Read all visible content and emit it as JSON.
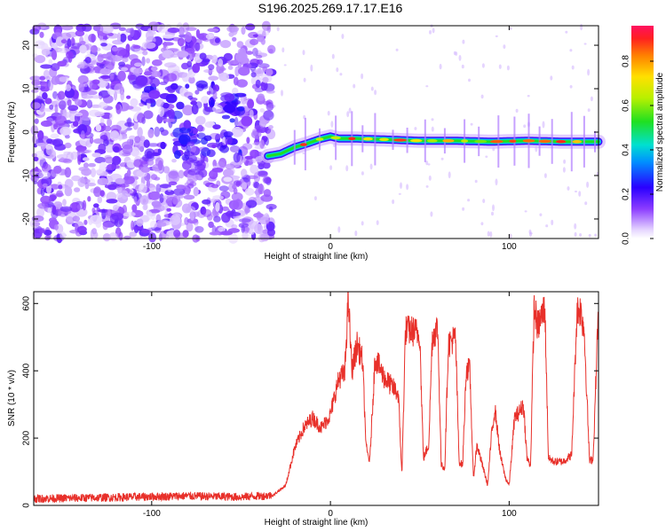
{
  "title": "S196.2025.269.17.17.E16",
  "chart_data": [
    {
      "type": "heatmap",
      "name": "spectrogram",
      "xlabel": "Height of straight line (km)",
      "ylabel": "Frequency (Hz)",
      "xlim": [
        -166,
        150
      ],
      "ylim": [
        -24.5,
        24.5
      ],
      "xticks": [
        -100,
        0,
        100
      ],
      "yticks": [
        -20,
        -10,
        0,
        10,
        20
      ],
      "colorbar": {
        "label": "Normalized spectral amplitude",
        "range": [
          0.0,
          0.96
        ],
        "ticks": [
          0.0,
          0.2,
          0.4,
          0.6,
          0.8
        ]
      },
      "ridge": {
        "x": [
          -35,
          -28,
          -20,
          -12,
          -5,
          0,
          5,
          15,
          30,
          50,
          70,
          90,
          110,
          130,
          150
        ],
        "y": [
          -5.5,
          -5.0,
          -3.5,
          -2.5,
          -1.5,
          -1.0,
          -1.5,
          -1.5,
          -1.7,
          -2.0,
          -2.0,
          -2.2,
          -2.0,
          -2.2,
          -2.2
        ]
      },
      "noise_region": {
        "x_from": -166,
        "x_to": -33,
        "note": "scattered low-amplitude noise over full frequency range"
      }
    },
    {
      "type": "line",
      "name": "snr",
      "xlabel": "Height of straight line (km)",
      "ylabel": "SNR (10 * v/v)",
      "xlim": [
        -166,
        150
      ],
      "ylim": [
        0,
        635
      ],
      "xticks": [
        -100,
        0,
        100
      ],
      "yticks": [
        0,
        200,
        400,
        600
      ],
      "color": "#e8302a",
      "series": [
        {
          "name": "SNR",
          "x": [
            -166,
            -140,
            -110,
            -80,
            -50,
            -32,
            -25,
            -20,
            -15,
            -10,
            -5,
            0,
            3,
            5,
            8,
            10,
            12,
            15,
            18,
            20,
            22,
            25,
            30,
            35,
            38,
            40,
            42,
            45,
            50,
            52,
            55,
            57,
            60,
            62,
            64,
            66,
            70,
            72,
            74,
            76,
            78,
            80,
            82,
            84,
            88,
            90,
            92,
            95,
            98,
            100,
            103,
            106,
            108,
            110,
            112,
            114,
            116,
            118,
            120,
            122,
            125,
            130,
            135,
            138,
            140,
            142,
            145,
            147,
            150
          ],
          "y": [
            20,
            22,
            25,
            28,
            25,
            30,
            60,
            170,
            230,
            260,
            230,
            270,
            340,
            380,
            390,
            620,
            400,
            480,
            430,
            170,
            130,
            440,
            380,
            350,
            330,
            90,
            520,
            520,
            510,
            140,
            180,
            500,
            530,
            120,
            110,
            480,
            500,
            130,
            120,
            410,
            400,
            80,
            180,
            140,
            60,
            200,
            290,
            150,
            80,
            60,
            260,
            280,
            300,
            140,
            120,
            590,
            530,
            560,
            590,
            140,
            130,
            130,
            150,
            580,
            580,
            520,
            130,
            140,
            600
          ]
        }
      ]
    }
  ]
}
